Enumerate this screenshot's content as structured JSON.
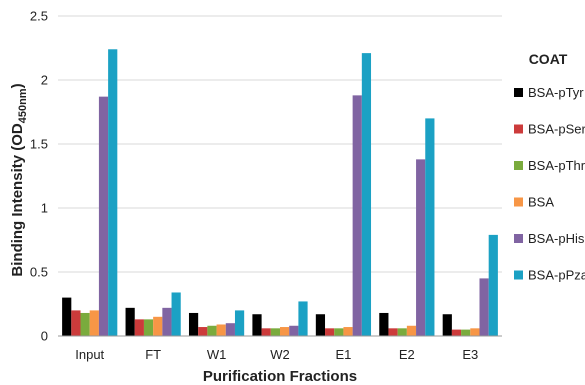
{
  "chart_data": {
    "type": "bar",
    "xlabel": "Purification Fractions",
    "ylabel_main": "Binding Intensity (OD",
    "ylabel_sub": "450nm",
    "ylabel_end": ")",
    "ylim": [
      0,
      2.5
    ],
    "yticks": [
      "0",
      "0.5",
      "1",
      "1.5",
      "2",
      "2.5"
    ],
    "grid": true,
    "legend_position": "right",
    "legend_title": "COAT",
    "categories": [
      "Input",
      "FT",
      "W1",
      "W2",
      "E1",
      "E2",
      "E3"
    ],
    "series": [
      {
        "name": "BSA-pTyr",
        "color": "#000000",
        "values": [
          0.3,
          0.22,
          0.18,
          0.17,
          0.17,
          0.18,
          0.17
        ]
      },
      {
        "name": "BSA-pSer",
        "color": "#cc3b3b",
        "values": [
          0.2,
          0.13,
          0.07,
          0.06,
          0.06,
          0.06,
          0.05
        ]
      },
      {
        "name": "BSA-pThr",
        "color": "#7aab3d",
        "values": [
          0.18,
          0.13,
          0.08,
          0.06,
          0.06,
          0.06,
          0.05
        ]
      },
      {
        "name": "BSA",
        "color": "#f79646",
        "values": [
          0.2,
          0.15,
          0.09,
          0.07,
          0.07,
          0.08,
          0.06
        ]
      },
      {
        "name": "BSA-pHis",
        "color": "#8064a2",
        "values": [
          1.87,
          0.22,
          0.1,
          0.08,
          1.88,
          1.38,
          0.45
        ]
      },
      {
        "name": "BSA-pPza",
        "color": "#1ba1c4",
        "values": [
          2.24,
          0.34,
          0.2,
          0.27,
          2.21,
          1.7,
          0.79
        ]
      }
    ]
  }
}
